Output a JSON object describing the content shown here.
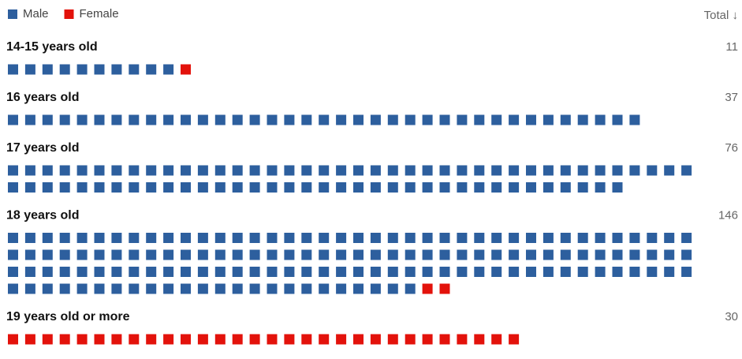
{
  "chart_data": {
    "type": "waffle",
    "categories": [
      "14-15 years old",
      "16 years old",
      "17 years old",
      "18 years old",
      "19 years old or more"
    ],
    "series": [
      {
        "name": "Male",
        "color": "#2d5f9e",
        "values": [
          10,
          37,
          76,
          144,
          0
        ]
      },
      {
        "name": "Female",
        "color": "#e3120b",
        "values": [
          1,
          0,
          0,
          2,
          30
        ]
      }
    ],
    "totals": [
      11,
      37,
      76,
      146,
      30
    ],
    "total_header": "Total ↓",
    "units_per_row": 40
  }
}
